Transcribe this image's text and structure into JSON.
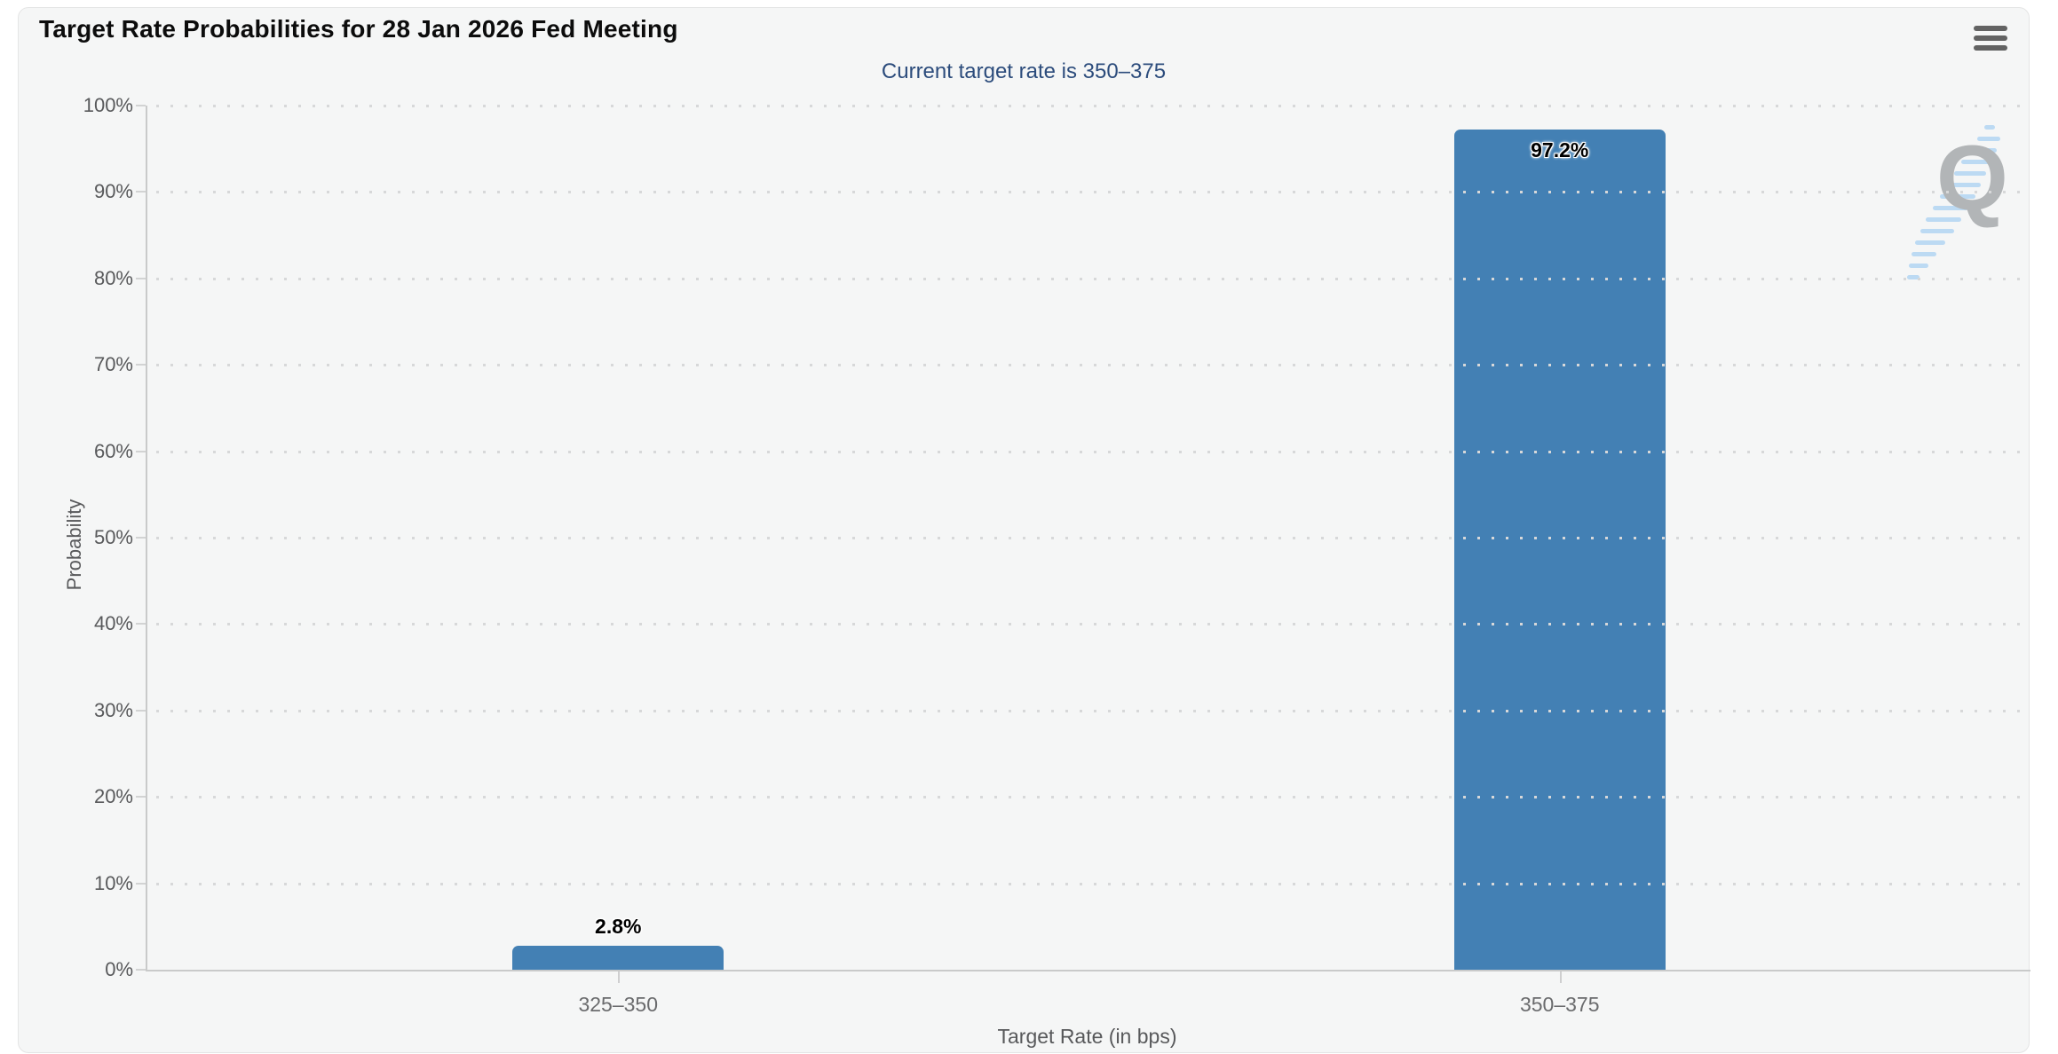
{
  "header": {
    "menu_tooltip": "Chart context menu"
  },
  "chart_data": {
    "type": "bar",
    "title": "Target Rate Probabilities for 28 Jan 2026 Fed Meeting",
    "subtitle": "Current target rate is 350–375",
    "categories": [
      "325–350",
      "350–375"
    ],
    "values": [
      2.8,
      97.2
    ],
    "value_labels": [
      "2.8%",
      "97.2%"
    ],
    "xlabel": "Target Rate (in bps)",
    "ylabel": "Probability",
    "ylim": [
      0,
      100
    ],
    "ytick_step": 10,
    "ytick_labels": [
      "0%",
      "10%",
      "20%",
      "30%",
      "40%",
      "50%",
      "60%",
      "70%",
      "80%",
      "90%",
      "100%"
    ],
    "grid": "horizontal-dotted",
    "legend": "none",
    "bar_color": "#4380b4",
    "subtitle_color": "#2c4c7c"
  },
  "watermark": {
    "letter": "Q"
  }
}
